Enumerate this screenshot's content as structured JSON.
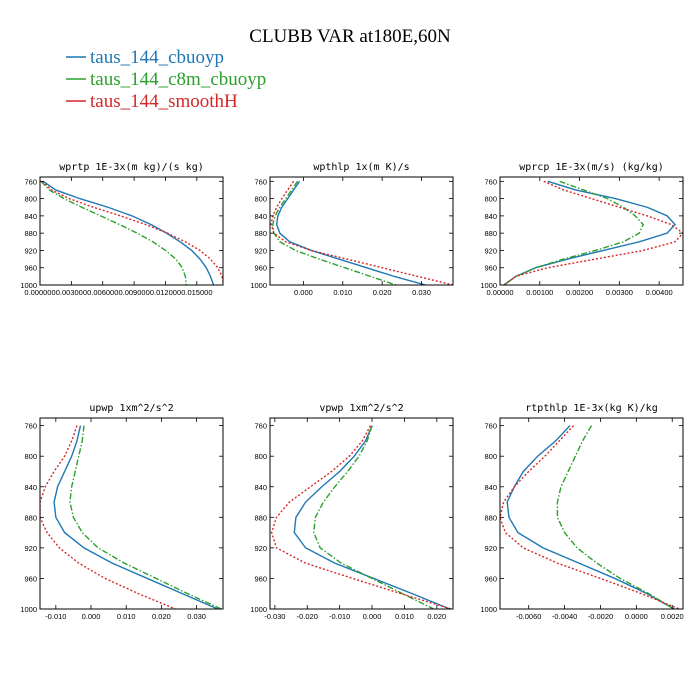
{
  "title": "CLUBB VAR at180E,60N",
  "legend": [
    {
      "label": "taus_144_cbuoyp",
      "color": "#1f77b4",
      "dash": "solid"
    },
    {
      "label": "taus_144_c8m_cbuoyp",
      "color": "#2ca02c",
      "dash": "dashdot"
    },
    {
      "label": "taus_144_smoothH",
      "color": "#d62728",
      "dash": "dot"
    }
  ],
  "chart_data": [
    {
      "type": "line",
      "title": "wprtp  1E-3x(m kg)/(s kg)",
      "ylim": [
        1000,
        750
      ],
      "xlim": [
        0.0,
        0.0175
      ],
      "yticks": [
        760,
        800,
        840,
        880,
        920,
        960,
        1000
      ],
      "xticks": [
        0.0,
        0.003,
        0.006,
        0.009,
        0.012,
        0.015
      ],
      "xticklabels": [
        "0.000000",
        "0.003000",
        "0.006000",
        "0.009000",
        "0.012000",
        "0.015000"
      ],
      "y": [
        760,
        780,
        800,
        820,
        840,
        860,
        880,
        900,
        920,
        940,
        960,
        980,
        1000
      ],
      "series": [
        {
          "name": "taus_144_cbuoyp",
          "values": [
            0.0003,
            0.0015,
            0.0038,
            0.0065,
            0.0088,
            0.0106,
            0.0121,
            0.0134,
            0.0145,
            0.0153,
            0.0159,
            0.0163,
            0.0166
          ]
        },
        {
          "name": "taus_144_c8m_cbuoyp",
          "values": [
            0.0001,
            0.0009,
            0.0023,
            0.004,
            0.0058,
            0.0076,
            0.0093,
            0.0108,
            0.012,
            0.013,
            0.0136,
            0.0139,
            0.014
          ]
        },
        {
          "name": "taus_144_smoothH",
          "values": [
            0.0002,
            0.0011,
            0.0028,
            0.0051,
            0.0077,
            0.0101,
            0.0122,
            0.0139,
            0.0153,
            0.0163,
            0.017,
            0.0174,
            0.0176
          ]
        }
      ]
    },
    {
      "type": "line",
      "title": "wpthlp  1x(m K)/s",
      "ylim": [
        1000,
        750
      ],
      "xlim": [
        -0.0085,
        0.038
      ],
      "yticks": [
        760,
        800,
        840,
        880,
        920,
        960,
        1000
      ],
      "xticks": [
        0.0,
        0.01,
        0.02,
        0.03
      ],
      "xticklabels": [
        "0.000",
        "0.010",
        "0.020",
        "0.030"
      ],
      "y": [
        760,
        780,
        800,
        820,
        840,
        860,
        880,
        900,
        920,
        940,
        960,
        980,
        1000
      ],
      "series": [
        {
          "name": "taus_144_cbuoyp",
          "values": [
            -0.001,
            -0.0025,
            -0.004,
            -0.0055,
            -0.0065,
            -0.0068,
            -0.006,
            -0.0035,
            0.002,
            0.009,
            0.016,
            0.023,
            0.031
          ]
        },
        {
          "name": "taus_144_c8m_cbuoyp",
          "values": [
            -0.0015,
            -0.003,
            -0.0045,
            -0.006,
            -0.0072,
            -0.0078,
            -0.0075,
            -0.006,
            -0.002,
            0.004,
            0.0105,
            0.017,
            0.0235
          ]
        },
        {
          "name": "taus_144_smoothH",
          "values": [
            -0.0025,
            -0.004,
            -0.0055,
            -0.0068,
            -0.0078,
            -0.0082,
            -0.0075,
            -0.0045,
            0.002,
            0.011,
            0.02,
            0.029,
            0.038
          ]
        }
      ]
    },
    {
      "type": "line",
      "title": "wprcp  1E-3x(m/s) (kg/kg)",
      "ylim": [
        1000,
        750
      ],
      "xlim": [
        0.0,
        0.0046
      ],
      "yticks": [
        760,
        800,
        840,
        880,
        920,
        960,
        1000
      ],
      "xticks": [
        0.0,
        0.001,
        0.002,
        0.003,
        0.004
      ],
      "xticklabels": [
        "0.00000",
        "0.00100",
        "0.00200",
        "0.00300",
        "0.00400"
      ],
      "y": [
        760,
        780,
        800,
        820,
        840,
        860,
        880,
        900,
        920,
        940,
        960,
        980,
        1000
      ],
      "series": [
        {
          "name": "taus_144_cbuoyp",
          "values": [
            0.0012,
            0.0019,
            0.0029,
            0.0037,
            0.0042,
            0.0044,
            0.0042,
            0.0035,
            0.0026,
            0.0017,
            0.0009,
            0.0004,
            0.0001
          ]
        },
        {
          "name": "taus_144_c8m_cbuoyp",
          "values": [
            0.0015,
            0.0021,
            0.0027,
            0.0031,
            0.0034,
            0.0036,
            0.0035,
            0.0031,
            0.0024,
            0.0016,
            0.0009,
            0.0004,
            0.0001
          ]
        },
        {
          "name": "taus_144_smoothH",
          "values": [
            0.0011,
            0.0016,
            0.0023,
            0.003,
            0.0037,
            0.0043,
            0.0046,
            0.0044,
            0.0036,
            0.0024,
            0.0012,
            0.0004,
            0.0001
          ]
        }
      ]
    },
    {
      "type": "line",
      "title": "upwp  1xm^2/s^2",
      "ylim": [
        1000,
        750
      ],
      "xlim": [
        -0.0145,
        0.0375
      ],
      "yticks": [
        760,
        800,
        840,
        880,
        920,
        960,
        1000
      ],
      "xticks": [
        -0.01,
        0.0,
        0.01,
        0.02,
        0.03
      ],
      "xticklabels": [
        "-0.010",
        "0.000",
        "0.010",
        "0.020",
        "0.030"
      ],
      "y": [
        760,
        780,
        800,
        820,
        840,
        860,
        880,
        900,
        920,
        940,
        960,
        980,
        1000
      ],
      "series": [
        {
          "name": "taus_144_cbuoyp",
          "values": [
            -0.003,
            -0.004,
            -0.0055,
            -0.0075,
            -0.0095,
            -0.0105,
            -0.01,
            -0.0075,
            -0.002,
            0.006,
            0.016,
            0.026,
            0.036
          ]
        },
        {
          "name": "taus_144_c8m_cbuoyp",
          "values": [
            -0.002,
            -0.0025,
            -0.0035,
            -0.0045,
            -0.0055,
            -0.006,
            -0.005,
            -0.0025,
            0.002,
            0.0095,
            0.0185,
            0.0275,
            0.037
          ]
        },
        {
          "name": "taus_144_smoothH",
          "values": [
            -0.004,
            -0.0055,
            -0.0075,
            -0.0105,
            -0.013,
            -0.0145,
            -0.0145,
            -0.0125,
            -0.009,
            -0.0035,
            0.004,
            0.0135,
            0.024
          ]
        }
      ]
    },
    {
      "type": "line",
      "title": "vpwp  1xm^2/s^2",
      "ylim": [
        1000,
        750
      ],
      "xlim": [
        -0.0315,
        0.025
      ],
      "yticks": [
        760,
        800,
        840,
        880,
        920,
        960,
        1000
      ],
      "xticks": [
        -0.03,
        -0.02,
        -0.01,
        0.0,
        0.01,
        0.02
      ],
      "xticklabels": [
        "-0.030",
        "-0.020",
        "-0.010",
        "0.000",
        "0.010",
        "0.020"
      ],
      "y": [
        760,
        780,
        800,
        820,
        840,
        860,
        880,
        900,
        920,
        940,
        960,
        980,
        1000
      ],
      "series": [
        {
          "name": "taus_144_cbuoyp",
          "values": [
            0.0,
            -0.002,
            -0.0055,
            -0.01,
            -0.0155,
            -0.0205,
            -0.0235,
            -0.024,
            -0.0205,
            -0.0115,
            0.0005,
            0.0125,
            0.024
          ]
        },
        {
          "name": "taus_144_c8m_cbuoyp",
          "values": [
            0.0,
            -0.0015,
            -0.004,
            -0.0075,
            -0.0115,
            -0.015,
            -0.0175,
            -0.018,
            -0.016,
            -0.0095,
            0.0,
            0.0095,
            0.019
          ]
        },
        {
          "name": "taus_144_smoothH",
          "values": [
            -0.0005,
            -0.003,
            -0.007,
            -0.0125,
            -0.019,
            -0.0255,
            -0.0295,
            -0.031,
            -0.0295,
            -0.0205,
            -0.006,
            0.009,
            0.0245
          ]
        }
      ]
    },
    {
      "type": "line",
      "title": "rtpthlp  1E-3x(kg K)/kg",
      "ylim": [
        1000,
        750
      ],
      "xlim": [
        -0.0076,
        0.0026
      ],
      "yticks": [
        760,
        800,
        840,
        880,
        920,
        960,
        1000
      ],
      "xticks": [
        -0.006,
        -0.004,
        -0.002,
        0.0,
        0.002
      ],
      "xticklabels": [
        "-0.0060",
        "-0.0040",
        "-0.0020",
        "0.0000",
        "0.0020"
      ],
      "y": [
        760,
        780,
        800,
        820,
        840,
        860,
        880,
        900,
        920,
        940,
        960,
        980,
        1000
      ],
      "series": [
        {
          "name": "taus_144_cbuoyp",
          "values": [
            -0.0037,
            -0.0045,
            -0.0055,
            -0.0063,
            -0.0068,
            -0.0072,
            -0.0071,
            -0.0066,
            -0.0052,
            -0.0032,
            -0.0012,
            0.0006,
            0.0021
          ]
        },
        {
          "name": "taus_144_c8m_cbuoyp",
          "values": [
            -0.0025,
            -0.003,
            -0.0034,
            -0.0038,
            -0.0042,
            -0.0044,
            -0.0044,
            -0.004,
            -0.0033,
            -0.0022,
            -0.0009,
            0.0007,
            0.0021
          ]
        },
        {
          "name": "taus_144_smoothH",
          "values": [
            -0.0035,
            -0.0043,
            -0.0051,
            -0.006,
            -0.0068,
            -0.0074,
            -0.0076,
            -0.0073,
            -0.0063,
            -0.0044,
            -0.002,
            0.0003,
            0.0024
          ]
        }
      ]
    }
  ]
}
